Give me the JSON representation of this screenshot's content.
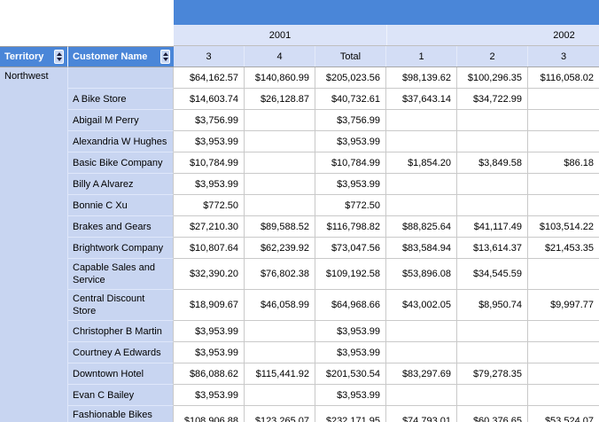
{
  "report": {
    "years": [
      "2001",
      "2002"
    ],
    "columns": [
      "3",
      "4",
      "Total",
      "1",
      "2",
      "3"
    ],
    "row_headers": {
      "territory": "Territory",
      "customer": "Customer Name"
    },
    "territory_value": "Northwest",
    "rows": [
      {
        "customer": "",
        "values": [
          "$64,162.57",
          "$140,860.99",
          "$205,023.56",
          "$98,139.62",
          "$100,296.35",
          "$116,058.02"
        ]
      },
      {
        "customer": "A Bike Store",
        "values": [
          "$14,603.74",
          "$26,128.87",
          "$40,732.61",
          "$37,643.14",
          "$34,722.99",
          ""
        ]
      },
      {
        "customer": "Abigail M Perry",
        "values": [
          "$3,756.99",
          "",
          "$3,756.99",
          "",
          "",
          ""
        ]
      },
      {
        "customer": "Alexandria W Hughes",
        "values": [
          "$3,953.99",
          "",
          "$3,953.99",
          "",
          "",
          ""
        ]
      },
      {
        "customer": "Basic Bike Company",
        "values": [
          "$10,784.99",
          "",
          "$10,784.99",
          "$1,854.20",
          "$3,849.58",
          "$86.18"
        ]
      },
      {
        "customer": "Billy A Alvarez",
        "values": [
          "$3,953.99",
          "",
          "$3,953.99",
          "",
          "",
          ""
        ]
      },
      {
        "customer": "Bonnie C Xu",
        "values": [
          "$772.50",
          "",
          "$772.50",
          "",
          "",
          ""
        ]
      },
      {
        "customer": "Brakes and Gears",
        "values": [
          "$27,210.30",
          "$89,588.52",
          "$116,798.82",
          "$88,825.64",
          "$41,117.49",
          "$103,514.22"
        ]
      },
      {
        "customer": "Brightwork Company",
        "values": [
          "$10,807.64",
          "$62,239.92",
          "$73,047.56",
          "$83,584.94",
          "$13,614.37",
          "$21,453.35"
        ]
      },
      {
        "customer": "Capable Sales and Service",
        "values": [
          "$32,390.20",
          "$76,802.38",
          "$109,192.58",
          "$53,896.08",
          "$34,545.59",
          ""
        ]
      },
      {
        "customer": "Central Discount Store",
        "values": [
          "$18,909.67",
          "$46,058.99",
          "$64,968.66",
          "$43,002.05",
          "$8,950.74",
          "$9,997.77"
        ]
      },
      {
        "customer": "Christopher B Martin",
        "values": [
          "$3,953.99",
          "",
          "$3,953.99",
          "",
          "",
          ""
        ]
      },
      {
        "customer": "Courtney A Edwards",
        "values": [
          "$3,953.99",
          "",
          "$3,953.99",
          "",
          "",
          ""
        ]
      },
      {
        "customer": "Downtown Hotel",
        "values": [
          "$86,088.62",
          "$115,441.92",
          "$201,530.54",
          "$83,297.69",
          "$79,278.35",
          ""
        ]
      },
      {
        "customer": "Evan C Bailey",
        "values": [
          "$3,953.99",
          "",
          "$3,953.99",
          "",
          "",
          ""
        ]
      },
      {
        "customer": "Fashionable Bikes and Accessories",
        "values": [
          "$108,906.88",
          "$123,265.07",
          "$232,171.95",
          "$74,793.01",
          "$60,376.65",
          "$53,524.07"
        ]
      }
    ],
    "icons": {
      "sort": "up-down-triangles"
    },
    "colors": {
      "header_blue": "#4a86d8",
      "year_band_bg": "#dce4f8",
      "column_band_bg": "#d3ddf5",
      "row_label_bg": "#c8d5f1",
      "grid_line": "#c9c9c9",
      "header_text": "#ffffff",
      "body_text": "#000000"
    }
  }
}
